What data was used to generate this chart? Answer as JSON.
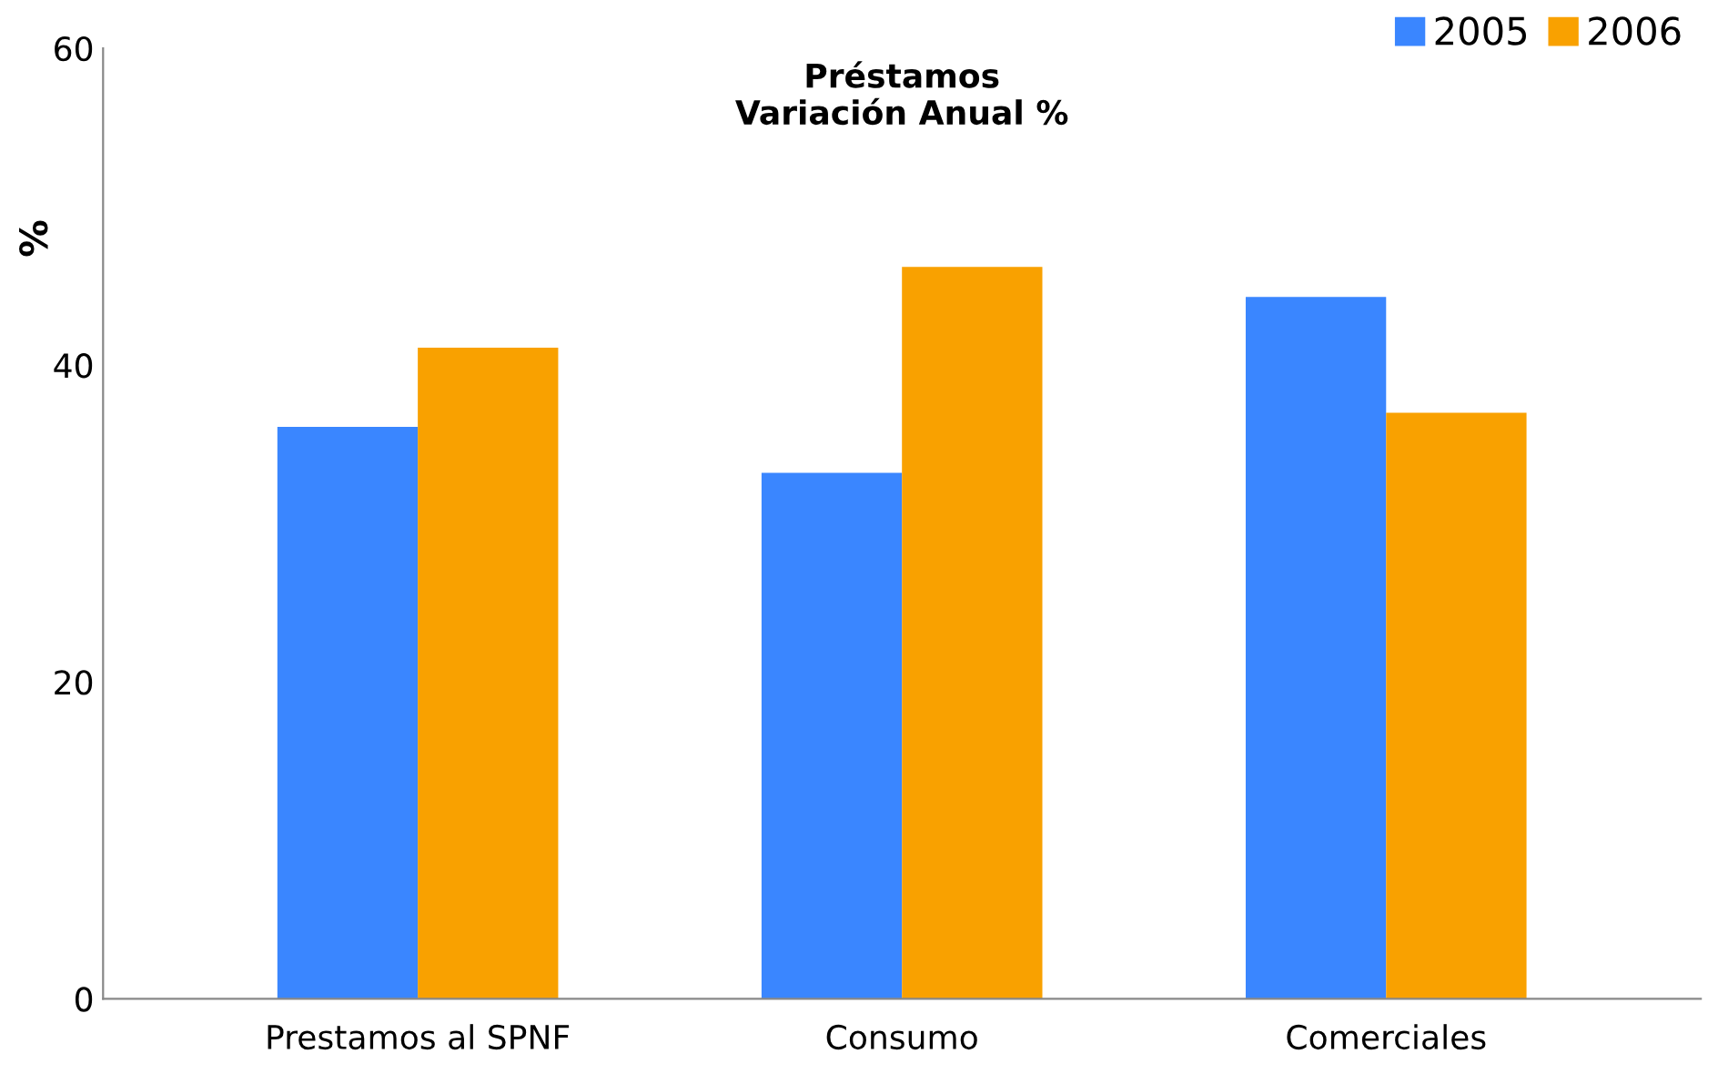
{
  "chart_data": {
    "type": "bar",
    "title": "Préstamos\nVariación Anual %",
    "ylabel": "%",
    "categories": [
      "Prestamos al SPNF",
      "Consumo",
      "Comerciales"
    ],
    "series": [
      {
        "name": "2005",
        "color": "#3a86ff",
        "values": [
          36.1,
          33.2,
          44.3
        ]
      },
      {
        "name": "2006",
        "color": "#f9a100",
        "values": [
          41.1,
          46.2,
          37.0
        ]
      }
    ],
    "ylim": [
      0,
      60
    ],
    "yticks": [
      0,
      20,
      40,
      60
    ],
    "grid": false,
    "legend": "top right"
  }
}
